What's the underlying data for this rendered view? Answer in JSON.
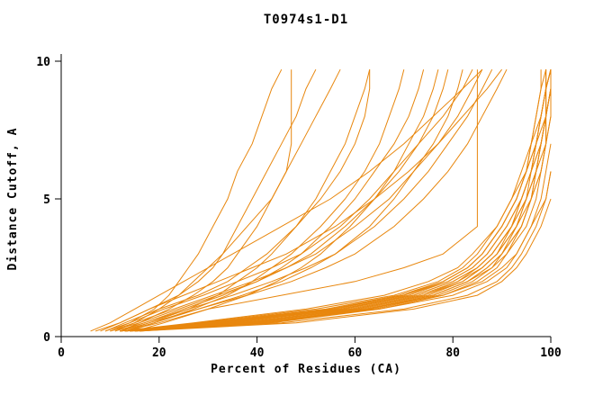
{
  "chart_data": {
    "type": "line",
    "title": "T0974s1-D1",
    "xlabel": "Percent of Residues (CA)",
    "ylabel": "Distance Cutoff, A",
    "xlim": [
      0,
      100
    ],
    "ylim": [
      0,
      10
    ],
    "xticks": [
      0,
      20,
      40,
      60,
      80,
      100
    ],
    "yticks": [
      0,
      5,
      10
    ],
    "grid": false,
    "legend": "none",
    "line_color": "#e8870e",
    "axis_color": "#000000",
    "background": "#ffffff",
    "y_levels": [
      0.2,
      0.5,
      1,
      1.5,
      2,
      2.5,
      3,
      4,
      5,
      6,
      7,
      8,
      9,
      9.7
    ],
    "series": [
      {
        "x": [
          10,
          14,
          19,
          22,
          24,
          26,
          28,
          31,
          34,
          36,
          39,
          41,
          43,
          45
        ]
      },
      {
        "x": [
          8,
          12,
          18,
          24,
          28,
          31,
          33,
          36,
          39,
          42,
          45,
          48,
          50,
          52
        ]
      },
      {
        "x": [
          12,
          16,
          22,
          27,
          31,
          34,
          36,
          40,
          43,
          46,
          49,
          52,
          55,
          57
        ]
      },
      {
        "x": [
          11,
          15,
          20,
          24,
          27,
          30,
          33,
          38,
          43,
          46,
          47,
          47,
          47,
          47
        ]
      },
      {
        "x": [
          13,
          18,
          26,
          32,
          36,
          40,
          43,
          48,
          52,
          55,
          58,
          60,
          62,
          63
        ]
      },
      {
        "x": [
          9,
          13,
          20,
          28,
          34,
          38,
          42,
          48,
          53,
          57,
          60,
          62,
          63,
          63
        ]
      },
      {
        "x": [
          14,
          19,
          27,
          34,
          39,
          43,
          47,
          53,
          58,
          62,
          65,
          67,
          69,
          70
        ]
      },
      {
        "x": [
          12,
          17,
          25,
          33,
          40,
          45,
          49,
          55,
          60,
          64,
          68,
          71,
          73,
          74
        ]
      },
      {
        "x": [
          15,
          21,
          30,
          38,
          44,
          49,
          53,
          59,
          64,
          68,
          71,
          74,
          76,
          77
        ]
      },
      {
        "x": [
          10,
          16,
          24,
          32,
          40,
          46,
          51,
          58,
          64,
          69,
          73,
          76,
          78,
          79
        ]
      },
      {
        "x": [
          13,
          19,
          28,
          37,
          45,
          51,
          56,
          63,
          68,
          72,
          76,
          79,
          81,
          82
        ]
      },
      {
        "x": [
          13,
          20,
          30,
          45,
          60,
          70,
          78,
          85,
          85,
          85,
          85,
          85,
          85,
          85
        ]
      },
      {
        "x": [
          12,
          30,
          55,
          70,
          78,
          83,
          86,
          90,
          93,
          95,
          96,
          97,
          98,
          98
        ]
      },
      {
        "x": [
          13,
          33,
          58,
          72,
          80,
          85,
          88,
          92,
          94,
          96,
          97,
          98,
          99,
          99
        ]
      },
      {
        "x": [
          14,
          36,
          60,
          74,
          82,
          86,
          89,
          93,
          95,
          97,
          98,
          99,
          100,
          100
        ]
      },
      {
        "x": [
          12,
          28,
          52,
          68,
          77,
          82,
          85,
          89,
          92,
          94,
          96,
          97,
          98,
          99
        ]
      },
      {
        "x": [
          15,
          40,
          62,
          76,
          83,
          87,
          90,
          93,
          96,
          97,
          98,
          99,
          100,
          100
        ]
      },
      {
        "x": [
          13,
          35,
          57,
          71,
          79,
          84,
          87,
          91,
          94,
          96,
          97,
          98,
          99,
          100
        ]
      },
      {
        "x": [
          14,
          38,
          61,
          75,
          82,
          86,
          89,
          92,
          95,
          97,
          98,
          99,
          99,
          100
        ]
      },
      {
        "x": [
          12,
          32,
          56,
          70,
          78,
          83,
          86,
          90,
          93,
          95,
          97,
          98,
          99,
          99
        ]
      },
      {
        "x": [
          16,
          42,
          64,
          77,
          84,
          88,
          91,
          94,
          96,
          98,
          99,
          99,
          100,
          100
        ]
      },
      {
        "x": [
          13,
          34,
          59,
          73,
          81,
          85,
          88,
          92,
          95,
          96,
          98,
          99,
          100,
          100
        ]
      },
      {
        "x": [
          15,
          39,
          63,
          76,
          83,
          87,
          90,
          94,
          96,
          97,
          99,
          100,
          100,
          100
        ]
      },
      {
        "x": [
          12,
          29,
          54,
          69,
          78,
          83,
          86,
          90,
          93,
          95,
          97,
          98,
          99,
          100
        ]
      },
      {
        "x": [
          14,
          37,
          60,
          74,
          81,
          86,
          89,
          93,
          95,
          97,
          98,
          99,
          100,
          100
        ]
      },
      {
        "x": [
          13,
          31,
          55,
          70,
          79,
          84,
          87,
          91,
          94,
          96,
          97,
          99,
          99,
          100
        ]
      },
      {
        "x": [
          16,
          43,
          65,
          78,
          85,
          89,
          91,
          95,
          97,
          98,
          99,
          100,
          100,
          100
        ]
      },
      {
        "x": [
          12,
          27,
          50,
          66,
          75,
          81,
          84,
          89,
          92,
          95,
          96,
          98,
          99,
          99
        ]
      },
      {
        "x": [
          15,
          41,
          63,
          76,
          83,
          88,
          90,
          94,
          96,
          98,
          99,
          99,
          100,
          100
        ]
      },
      {
        "x": [
          13,
          33,
          57,
          72,
          80,
          85,
          88,
          92,
          94,
          96,
          98,
          99,
          99,
          100
        ]
      },
      {
        "x": [
          11,
          17,
          26,
          35,
          43,
          50,
          56,
          64,
          70,
          75,
          79,
          83,
          86,
          88
        ]
      },
      {
        "x": [
          12,
          18,
          28,
          38,
          47,
          54,
          60,
          68,
          74,
          79,
          83,
          86,
          89,
          91
        ]
      },
      {
        "x": [
          10,
          15,
          23,
          31,
          39,
          46,
          52,
          60,
          67,
          72,
          77,
          81,
          84,
          86
        ]
      },
      {
        "x": [
          9,
          14,
          21,
          29,
          36,
          43,
          49,
          57,
          63,
          68,
          73,
          78,
          82,
          84
        ]
      },
      {
        "x": [
          6,
          10,
          15,
          20,
          25,
          30,
          35,
          45,
          55,
          63,
          70,
          76,
          82,
          86
        ]
      },
      {
        "x": [
          7,
          12,
          18,
          25,
          32,
          39,
          46,
          56,
          64,
          71,
          77,
          82,
          87,
          90
        ]
      },
      {
        "x": [
          14,
          40,
          65,
          80,
          87,
          91,
          93,
          96,
          98,
          99,
          100
        ]
      },
      {
        "x": [
          15,
          45,
          70,
          83,
          89,
          92,
          94,
          97,
          99,
          100
        ]
      },
      {
        "x": [
          16,
          48,
          72,
          85,
          90,
          93,
          95,
          98,
          100
        ]
      },
      {
        "x": [
          13,
          36,
          62,
          78,
          86,
          90,
          93,
          96,
          99,
          100
        ]
      }
    ]
  }
}
